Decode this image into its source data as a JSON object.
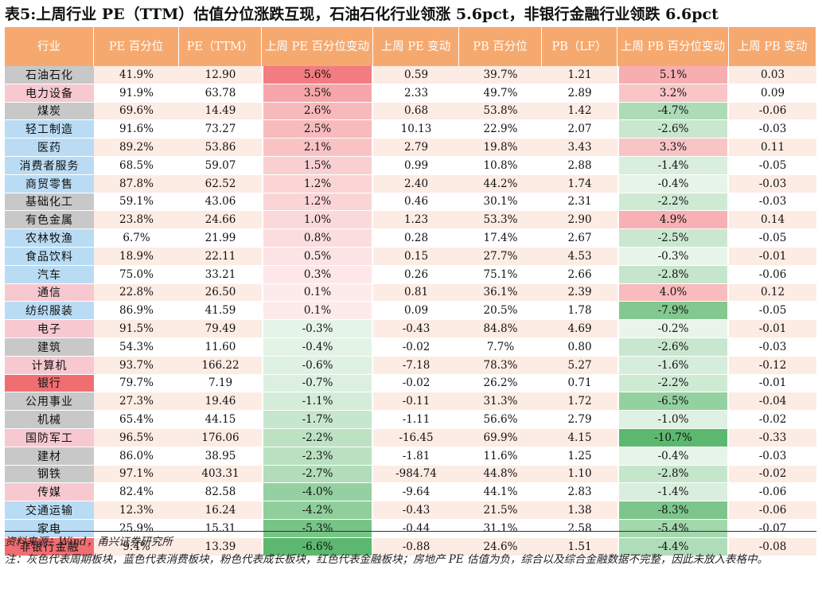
{
  "title": "表5:上周行业 PE（TTM）估值分位涨跌互现，石油石化行业领涨 5.6pct，非银行金融行业领跌 6.6pct",
  "headers": [
    "行业",
    "PE 百分位",
    "PE（TTM）",
    "上周 PE 百分位变动",
    "上周 PE 变动",
    "PB 百分位",
    "PB（LF）",
    "上周 PB 百分位变动",
    "上周 PB 变动"
  ],
  "group_colors": {
    "gray": "#c8c8c8",
    "blue": "#b9dcf4",
    "pink": "#f7c8d0",
    "red": "#f06e72"
  },
  "rows": [
    {
      "industry": "石油石化",
      "group": "gray",
      "pe_pct": "41.9%",
      "pe": "12.90",
      "pe_pct_chg": "5.6%",
      "pe_chg": "0.59",
      "pb_pct": "39.7%",
      "pb": "1.21",
      "pb_pct_chg": "5.1%",
      "pb_chg": "0.03"
    },
    {
      "industry": "电力设备",
      "group": "pink",
      "pe_pct": "91.9%",
      "pe": "63.78",
      "pe_pct_chg": "3.5%",
      "pe_chg": "2.33",
      "pb_pct": "49.7%",
      "pb": "2.89",
      "pb_pct_chg": "3.2%",
      "pb_chg": "0.09"
    },
    {
      "industry": "煤炭",
      "group": "gray",
      "pe_pct": "69.6%",
      "pe": "14.49",
      "pe_pct_chg": "2.6%",
      "pe_chg": "0.68",
      "pb_pct": "53.8%",
      "pb": "1.42",
      "pb_pct_chg": "-4.7%",
      "pb_chg": "-0.06"
    },
    {
      "industry": "轻工制造",
      "group": "blue",
      "pe_pct": "91.6%",
      "pe": "73.27",
      "pe_pct_chg": "2.5%",
      "pe_chg": "10.13",
      "pb_pct": "22.9%",
      "pb": "2.07",
      "pb_pct_chg": "-2.6%",
      "pb_chg": "-0.03"
    },
    {
      "industry": "医药",
      "group": "blue",
      "pe_pct": "89.2%",
      "pe": "53.86",
      "pe_pct_chg": "2.1%",
      "pe_chg": "2.79",
      "pb_pct": "19.8%",
      "pb": "3.43",
      "pb_pct_chg": "3.3%",
      "pb_chg": "0.11"
    },
    {
      "industry": "消费者服务",
      "group": "blue",
      "pe_pct": "68.5%",
      "pe": "59.07",
      "pe_pct_chg": "1.5%",
      "pe_chg": "0.99",
      "pb_pct": "10.8%",
      "pb": "2.88",
      "pb_pct_chg": "-1.4%",
      "pb_chg": "-0.05"
    },
    {
      "industry": "商贸零售",
      "group": "blue",
      "pe_pct": "87.8%",
      "pe": "62.52",
      "pe_pct_chg": "1.2%",
      "pe_chg": "2.40",
      "pb_pct": "44.2%",
      "pb": "1.74",
      "pb_pct_chg": "-0.4%",
      "pb_chg": "-0.03"
    },
    {
      "industry": "基础化工",
      "group": "gray",
      "pe_pct": "59.1%",
      "pe": "43.06",
      "pe_pct_chg": "1.2%",
      "pe_chg": "0.46",
      "pb_pct": "30.1%",
      "pb": "2.31",
      "pb_pct_chg": "-2.2%",
      "pb_chg": "-0.03"
    },
    {
      "industry": "有色金属",
      "group": "gray",
      "pe_pct": "23.8%",
      "pe": "24.66",
      "pe_pct_chg": "1.0%",
      "pe_chg": "1.23",
      "pb_pct": "53.3%",
      "pb": "2.90",
      "pb_pct_chg": "4.9%",
      "pb_chg": "0.14"
    },
    {
      "industry": "农林牧渔",
      "group": "blue",
      "pe_pct": "6.7%",
      "pe": "21.99",
      "pe_pct_chg": "0.8%",
      "pe_chg": "0.28",
      "pb_pct": "17.4%",
      "pb": "2.67",
      "pb_pct_chg": "-2.5%",
      "pb_chg": "-0.05"
    },
    {
      "industry": "食品饮料",
      "group": "blue",
      "pe_pct": "18.9%",
      "pe": "22.11",
      "pe_pct_chg": "0.5%",
      "pe_chg": "0.15",
      "pb_pct": "27.7%",
      "pb": "4.53",
      "pb_pct_chg": "-0.3%",
      "pb_chg": "-0.01"
    },
    {
      "industry": "汽车",
      "group": "blue",
      "pe_pct": "75.0%",
      "pe": "33.21",
      "pe_pct_chg": "0.3%",
      "pe_chg": "0.26",
      "pb_pct": "75.1%",
      "pb": "2.66",
      "pb_pct_chg": "-2.8%",
      "pb_chg": "-0.06"
    },
    {
      "industry": "通信",
      "group": "pink",
      "pe_pct": "22.8%",
      "pe": "26.50",
      "pe_pct_chg": "0.1%",
      "pe_chg": "0.81",
      "pb_pct": "36.1%",
      "pb": "2.39",
      "pb_pct_chg": "4.0%",
      "pb_chg": "0.12"
    },
    {
      "industry": "纺织服装",
      "group": "blue",
      "pe_pct": "86.9%",
      "pe": "41.59",
      "pe_pct_chg": "0.1%",
      "pe_chg": "0.09",
      "pb_pct": "20.5%",
      "pb": "1.78",
      "pb_pct_chg": "-7.9%",
      "pb_chg": "-0.05"
    },
    {
      "industry": "电子",
      "group": "pink",
      "pe_pct": "91.5%",
      "pe": "79.49",
      "pe_pct_chg": "-0.3%",
      "pe_chg": "-0.43",
      "pb_pct": "84.8%",
      "pb": "4.69",
      "pb_pct_chg": "-0.2%",
      "pb_chg": "-0.01"
    },
    {
      "industry": "建筑",
      "group": "gray",
      "pe_pct": "54.3%",
      "pe": "11.60",
      "pe_pct_chg": "-0.4%",
      "pe_chg": "-0.02",
      "pb_pct": "7.7%",
      "pb": "0.80",
      "pb_pct_chg": "-2.6%",
      "pb_chg": "-0.03"
    },
    {
      "industry": "计算机",
      "group": "pink",
      "pe_pct": "93.7%",
      "pe": "166.22",
      "pe_pct_chg": "-0.6%",
      "pe_chg": "-7.18",
      "pb_pct": "78.3%",
      "pb": "5.27",
      "pb_pct_chg": "-1.6%",
      "pb_chg": "-0.12"
    },
    {
      "industry": "银行",
      "group": "red",
      "pe_pct": "79.7%",
      "pe": "7.19",
      "pe_pct_chg": "-0.7%",
      "pe_chg": "-0.02",
      "pb_pct": "26.2%",
      "pb": "0.71",
      "pb_pct_chg": "-2.2%",
      "pb_chg": "-0.01"
    },
    {
      "industry": "公用事业",
      "group": "gray",
      "pe_pct": "27.3%",
      "pe": "19.46",
      "pe_pct_chg": "-1.1%",
      "pe_chg": "-0.11",
      "pb_pct": "31.3%",
      "pb": "1.72",
      "pb_pct_chg": "-6.5%",
      "pb_chg": "-0.04"
    },
    {
      "industry": "机械",
      "group": "gray",
      "pe_pct": "65.4%",
      "pe": "44.15",
      "pe_pct_chg": "-1.7%",
      "pe_chg": "-1.11",
      "pb_pct": "56.6%",
      "pb": "2.79",
      "pb_pct_chg": "-1.0%",
      "pb_chg": "-0.02"
    },
    {
      "industry": "国防军工",
      "group": "pink",
      "pe_pct": "96.5%",
      "pe": "176.06",
      "pe_pct_chg": "-2.2%",
      "pe_chg": "-16.45",
      "pb_pct": "69.9%",
      "pb": "4.15",
      "pb_pct_chg": "-10.7%",
      "pb_chg": "-0.33"
    },
    {
      "industry": "建材",
      "group": "gray",
      "pe_pct": "86.0%",
      "pe": "38.95",
      "pe_pct_chg": "-2.3%",
      "pe_chg": "-1.81",
      "pb_pct": "11.6%",
      "pb": "1.25",
      "pb_pct_chg": "-0.4%",
      "pb_chg": "-0.03"
    },
    {
      "industry": "钢铁",
      "group": "gray",
      "pe_pct": "97.1%",
      "pe": "403.31",
      "pe_pct_chg": "-2.7%",
      "pe_chg": "-984.74",
      "pb_pct": "44.8%",
      "pb": "1.10",
      "pb_pct_chg": "-2.8%",
      "pb_chg": "-0.02"
    },
    {
      "industry": "传媒",
      "group": "pink",
      "pe_pct": "82.4%",
      "pe": "82.58",
      "pe_pct_chg": "-4.0%",
      "pe_chg": "-9.64",
      "pb_pct": "44.1%",
      "pb": "2.83",
      "pb_pct_chg": "-1.4%",
      "pb_chg": "-0.06"
    },
    {
      "industry": "交通运输",
      "group": "blue",
      "pe_pct": "12.3%",
      "pe": "16.24",
      "pe_pct_chg": "-4.2%",
      "pe_chg": "-0.43",
      "pb_pct": "21.5%",
      "pb": "1.38",
      "pb_pct_chg": "-8.3%",
      "pb_chg": "-0.06"
    },
    {
      "industry": "家电",
      "group": "blue",
      "pe_pct": "25.9%",
      "pe": "15.31",
      "pe_pct_chg": "-5.3%",
      "pe_chg": "-0.44",
      "pb_pct": "31.1%",
      "pb": "2.58",
      "pb_pct_chg": "-5.4%",
      "pb_chg": "-0.07"
    },
    {
      "industry": "非银行金融",
      "group": "red",
      "pe_pct": "9.4%",
      "pe": "13.39",
      "pe_pct_chg": "-6.6%",
      "pe_chg": "-0.88",
      "pb_pct": "24.6%",
      "pb": "1.51",
      "pb_pct_chg": "-4.4%",
      "pb_chg": "-0.08"
    }
  ],
  "source": "资料来源：Wind，甬兴证券研究所",
  "note": "注：灰色代表周期板块，蓝色代表消费板块，粉色代表成长板块，红色代表金融板块；房地产 PE 估值为负，综合以及综合金融数据不完整，因此未放入表格中。"
}
